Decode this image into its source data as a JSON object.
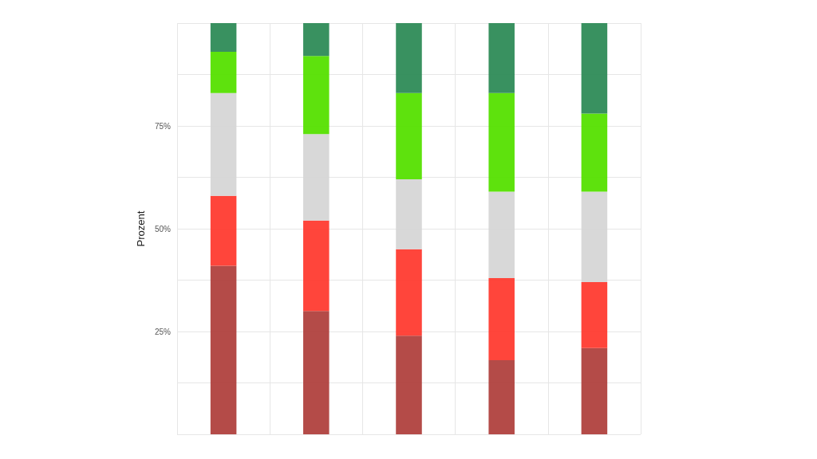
{
  "chart_data": {
    "type": "bar",
    "stacked": true,
    "ylabel": "Prozent",
    "categories": [
      null,
      null,
      null,
      null,
      null
    ],
    "series": [
      {
        "color": "#b0413e",
        "values": [
          41,
          30,
          24,
          18,
          21
        ]
      },
      {
        "color": "#ff3b30",
        "values": [
          17,
          22,
          21,
          20,
          16
        ]
      },
      {
        "color": "#d6d6d6",
        "values": [
          25,
          21,
          17,
          21,
          22
        ]
      },
      {
        "color": "#55e000",
        "values": [
          10,
          19,
          21,
          24,
          19
        ]
      },
      {
        "color": "#2e8b57",
        "values": [
          7,
          8,
          17,
          17,
          22
        ]
      }
    ],
    "ylim": [
      0,
      100
    ],
    "yticks": [
      {
        "value": 0,
        "label": null
      },
      {
        "value": 12.5,
        "label": null
      },
      {
        "value": 25,
        "label": "25%"
      },
      {
        "value": 37.5,
        "label": null
      },
      {
        "value": 50,
        "label": "50%"
      },
      {
        "value": 62.5,
        "label": null
      },
      {
        "value": 75,
        "label": "75%"
      },
      {
        "value": 87.5,
        "label": null
      },
      {
        "value": 100,
        "label": null
      }
    ],
    "grid": true
  }
}
